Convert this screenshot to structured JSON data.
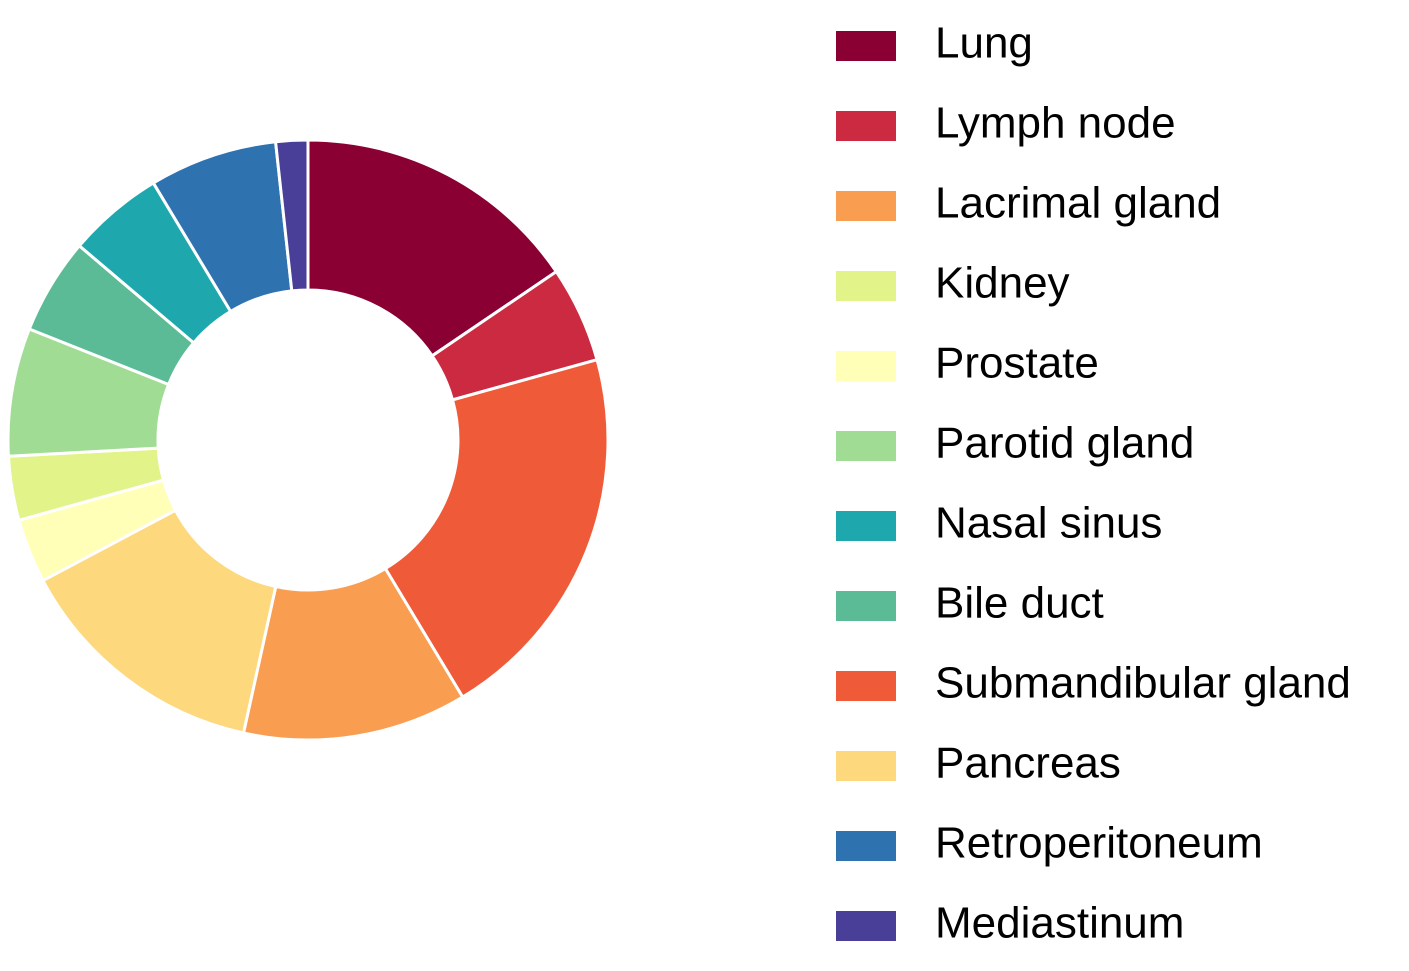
{
  "chart_data": {
    "type": "donut",
    "categories": [
      "Lung",
      "Lymph node",
      "Lacrimal gland",
      "Kidney",
      "Prostate",
      "Parotid gland",
      "Nasal sinus",
      "Bile duct",
      "Submandibular gland",
      "Pancreas",
      "Retroperitoneum",
      "Mediastinum"
    ],
    "values": [
      9,
      3,
      7,
      2,
      2,
      4,
      3,
      3,
      12,
      8,
      4,
      1
    ],
    "colors": [
      "#8b0033",
      "#cc2a40",
      "#f99d51",
      "#e2f38a",
      "#ffffb8",
      "#a1dc94",
      "#1ea8ad",
      "#5bbb96",
      "#ef5b38",
      "#fdd87c",
      "#2e73b0",
      "#4a3f98"
    ],
    "legend": "right"
  }
}
